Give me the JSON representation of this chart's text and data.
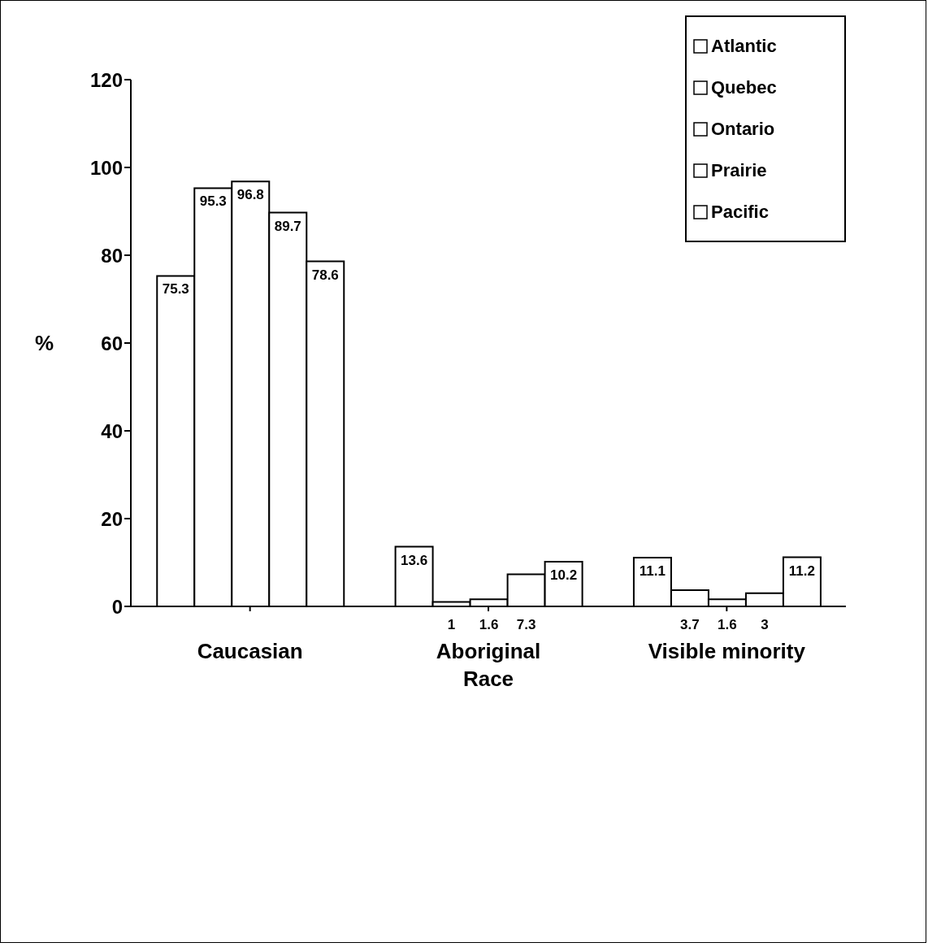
{
  "chart_data": {
    "type": "bar",
    "xlabel": "Race",
    "ylabel": "%",
    "categories": [
      "Caucasian",
      "Aboriginal",
      "Visible minority"
    ],
    "series": [
      {
        "name": "Atlantic",
        "color": "#ffffff",
        "values": [
          75.3,
          13.6,
          11.1
        ]
      },
      {
        "name": "Quebec",
        "color": "#ffffff",
        "values": [
          95.3,
          1,
          3.7
        ]
      },
      {
        "name": "Ontario",
        "color": "#ffffff",
        "values": [
          96.8,
          1.6,
          1.6
        ]
      },
      {
        "name": "Prairie",
        "color": "#ffffff",
        "values": [
          89.7,
          7.3,
          3
        ]
      },
      {
        "name": "Pacific",
        "color": "#ffffff",
        "values": [
          78.6,
          10.2,
          11.2
        ]
      }
    ],
    "ylim": [
      0,
      120
    ],
    "yticks": [
      0,
      20,
      40,
      60,
      80,
      100,
      120
    ],
    "grid": false,
    "legend": "top right",
    "data_labels": true
  }
}
